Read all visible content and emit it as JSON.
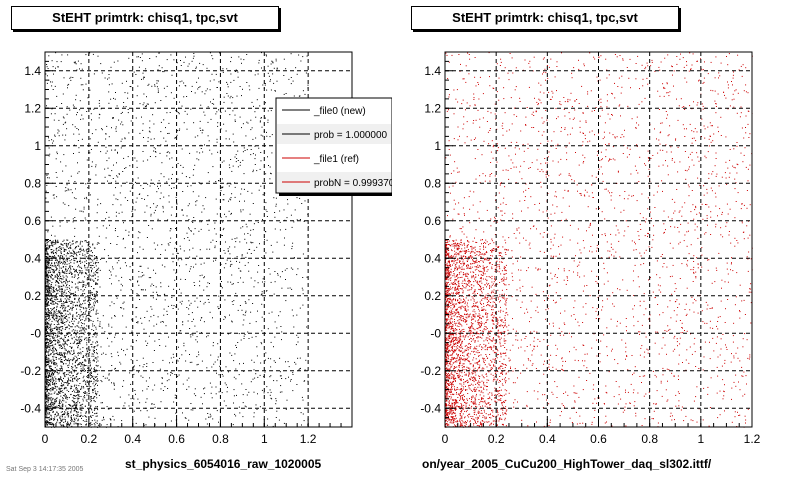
{
  "footer_text": "Sat Sep 3 14:17:35 2005",
  "chart_data": [
    {
      "type": "scatter",
      "title": "StEHT primtrk: chisq1, tpc,svt",
      "xlabel": "st_physics_6054016_raw_1020005",
      "xlim": [
        0,
        1.4
      ],
      "ylim": [
        -0.5,
        1.5
      ],
      "xticks": [
        0,
        0.2,
        0.4,
        0.6,
        0.8,
        1,
        1.2
      ],
      "xtick_labels": [
        "0",
        "0.2",
        "0.4",
        "0.6",
        "0.8",
        "1",
        "1.2"
      ],
      "yticks": [
        -0.4,
        -0.2,
        0,
        0.2,
        0.4,
        0.6,
        0.8,
        1,
        1.2,
        1.4
      ],
      "ytick_labels": [
        "-0.4",
        "-0.2",
        "-0",
        "0.2",
        "0.4",
        "0.6",
        "0.8",
        "1",
        "1.2",
        "1.4"
      ],
      "grid": true,
      "marker_color": "#000000",
      "density": {
        "dense_region": {
          "x": [
            0,
            0.2
          ],
          "y": [
            -0.5,
            0.5
          ],
          "relative_density": "high"
        },
        "sparse_region": {
          "x": [
            0,
            1.4
          ],
          "y": [
            -0.5,
            1.5
          ],
          "relative_density": "low"
        }
      },
      "legend": {
        "placement": "top-right",
        "entries": [
          {
            "label": "_file0 (new)",
            "color": "#000000"
          },
          {
            "label": "prob = 1.000000",
            "color": "#000000"
          },
          {
            "label": "_file1 (ref)",
            "color": "#cc0000"
          },
          {
            "label": "probN = 0.999370",
            "color": "#cc0000"
          }
        ]
      }
    },
    {
      "type": "scatter",
      "title": "StEHT primtrk: chisq1, tpc,svt",
      "xlabel": "on/year_2005_CuCu200_HighTower_daq_sl302.ittf/",
      "xlim": [
        0,
        1.2
      ],
      "ylim": [
        -0.5,
        1.5
      ],
      "xticks": [
        0,
        0.2,
        0.4,
        0.6,
        0.8,
        1,
        1.2
      ],
      "xtick_labels": [
        "0",
        "0.2",
        "0.4",
        "0.6",
        "0.8",
        "1",
        "1.2"
      ],
      "yticks": [
        -0.4,
        -0.2,
        0,
        0.2,
        0.4,
        0.6,
        0.8,
        1,
        1.2,
        1.4
      ],
      "ytick_labels": [
        "-0.4",
        "-0.2",
        "-0",
        "0.2",
        "0.4",
        "0.6",
        "0.8",
        "1",
        "1.2",
        "1.4"
      ],
      "grid": true,
      "marker_color": "#cc0000",
      "density": {
        "dense_region": {
          "x": [
            0,
            0.2
          ],
          "y": [
            -0.5,
            0.5
          ],
          "relative_density": "high"
        },
        "sparse_region": {
          "x": [
            0,
            1.2
          ],
          "y": [
            -0.5,
            1.5
          ],
          "relative_density": "low"
        }
      }
    }
  ]
}
